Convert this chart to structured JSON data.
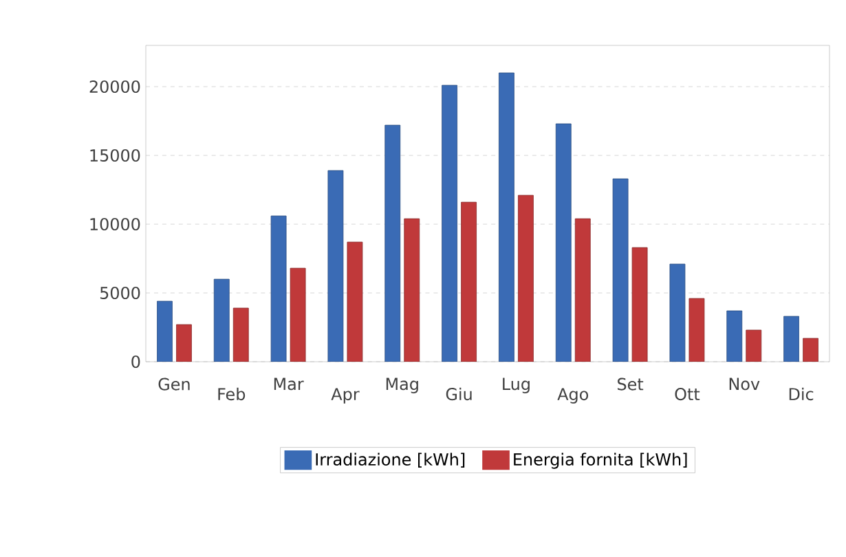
{
  "chart_data": {
    "type": "bar",
    "categories": [
      "Gen",
      "Feb",
      "Mar",
      "Apr",
      "Mag",
      "Giu",
      "Lug",
      "Ago",
      "Set",
      "Ott",
      "Nov",
      "Dic"
    ],
    "series": [
      {
        "name": "Irradiazione [kWh]",
        "color": "#3a6bb5",
        "values": [
          4400,
          6000,
          10600,
          13900,
          17200,
          20100,
          21000,
          17300,
          13300,
          7100,
          3700,
          3300
        ]
      },
      {
        "name": "Energia fornita [kWh]",
        "color": "#c0393a",
        "values": [
          2700,
          3900,
          6800,
          8700,
          10400,
          11600,
          12100,
          10400,
          8300,
          4600,
          2300,
          1700
        ]
      }
    ],
    "ylim": [
      0,
      23000
    ],
    "yticks": [
      0,
      5000,
      10000,
      15000,
      20000
    ],
    "grid": "y",
    "legend": "bottom"
  }
}
